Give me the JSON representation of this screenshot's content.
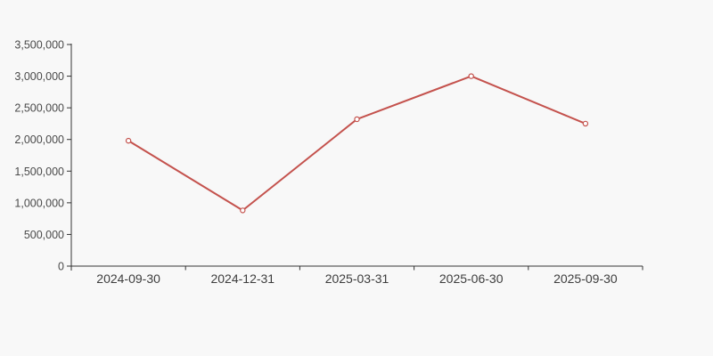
{
  "chart_data": {
    "type": "line",
    "title": "",
    "xlabel": "",
    "ylabel": "",
    "categories": [
      "2024-09-30",
      "2024-12-31",
      "2025-03-31",
      "2025-06-30",
      "2025-09-30"
    ],
    "series": [
      {
        "name": "value",
        "values": [
          1980000,
          880000,
          2320000,
          3000000,
          2250000
        ]
      }
    ],
    "ylim": [
      0,
      3500000
    ],
    "y_tick_values": [
      0,
      500000,
      1000000,
      1500000,
      2000000,
      2500000,
      3000000,
      3500000
    ],
    "y_tick_labels": [
      "0",
      "500,000",
      "1,000,000",
      "1,500,000",
      "2,000,000",
      "2,500,000",
      "3,000,000",
      "3,500,000"
    ],
    "grid": false,
    "legend_position": "none",
    "marker": "open-circle",
    "colors": {
      "line": "#c4524d",
      "marker_fill": "#ffffff",
      "axis": "#333333",
      "y_label": "#4a4a4a",
      "x_label": "#3d3d3d",
      "background": "#f8f8f8"
    }
  }
}
